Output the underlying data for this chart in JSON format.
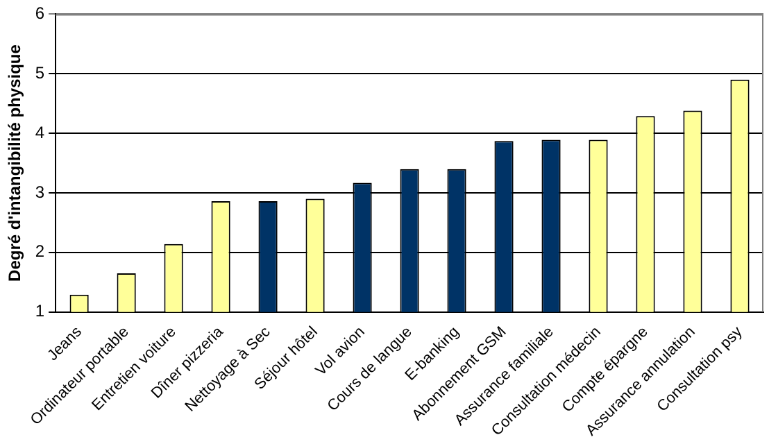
{
  "chart_data": {
    "type": "bar",
    "ylabel": "Degré d'intangibilité physique",
    "categories": [
      "Jeans",
      "Ordinateur portable",
      "Entretien voiture",
      "Dîner pizzeria",
      "Nettoyage à Sec",
      "Séjour hôtel",
      "Vol avion",
      "Cours de langue",
      "E-banking",
      "Abonnement GSM",
      "Assurance familiale",
      "Consultation médecin",
      "Compte épargne",
      "Assurance annulation",
      "Consultation psy"
    ],
    "values": [
      1.29,
      1.65,
      2.14,
      2.86,
      2.86,
      2.9,
      3.17,
      3.4,
      3.4,
      3.87,
      3.89,
      3.89,
      4.29,
      4.38,
      4.9
    ],
    "colors": [
      "#ffff99",
      "#ffff99",
      "#ffff99",
      "#ffff99",
      "#003366",
      "#ffff99",
      "#003366",
      "#003366",
      "#003366",
      "#003366",
      "#003366",
      "#ffff99",
      "#ffff99",
      "#ffff99",
      "#ffff99"
    ],
    "ylim": [
      1,
      6
    ],
    "yticks": [
      1,
      2,
      3,
      4,
      5,
      6
    ],
    "grid": "y"
  }
}
